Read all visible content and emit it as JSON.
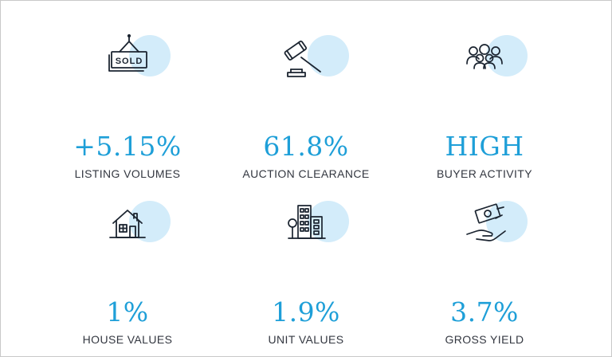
{
  "stats": [
    {
      "value": "+5.15%",
      "label": "LISTING VOLUMES",
      "icon": "sold-sign-icon"
    },
    {
      "value": "61.8%",
      "label": "AUCTION CLEARANCE",
      "icon": "gavel-icon"
    },
    {
      "value": "HIGH",
      "label": "BUYER ACTIVITY",
      "icon": "people-group-icon"
    },
    {
      "value": "1%",
      "label": "HOUSE VALUES",
      "icon": "house-icon"
    },
    {
      "value": "1.9%",
      "label": "UNIT VALUES",
      "icon": "apartment-building-icon"
    },
    {
      "value": "3.7%",
      "label": "GROSS YIELD",
      "icon": "money-hand-icon"
    }
  ],
  "sold_sign_text": "SOLD",
  "colors": {
    "accent": "#1e9fd8",
    "icon_circle": "#d3ecfa",
    "label": "#333740",
    "border": "#c9c9c9"
  }
}
